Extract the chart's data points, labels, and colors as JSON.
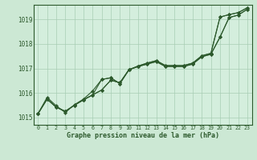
{
  "title": "Graphe pression niveau de la mer (hPa)",
  "background_color": "#cce8d4",
  "plot_bg_color": "#d4eedd",
  "grid_color": "#a8cdb4",
  "line_color": "#2d5a2d",
  "marker_color": "#2d5a2d",
  "xlim": [
    -0.5,
    23.5
  ],
  "ylim": [
    1014.7,
    1019.6
  ],
  "xticks": [
    0,
    1,
    2,
    3,
    4,
    5,
    6,
    7,
    8,
    9,
    10,
    11,
    12,
    13,
    14,
    15,
    16,
    17,
    18,
    19,
    20,
    21,
    22,
    23
  ],
  "yticks": [
    1015,
    1016,
    1017,
    1018,
    1019
  ],
  "series": [
    [
      1015.15,
      1015.75,
      1015.42,
      1015.25,
      1015.5,
      1015.72,
      1015.92,
      1016.12,
      1016.52,
      1016.42,
      1016.95,
      1017.1,
      1017.22,
      1017.32,
      1017.12,
      1017.12,
      1017.12,
      1017.22,
      1017.52,
      1017.62,
      1019.1,
      1019.2,
      1019.28,
      1019.48
    ],
    [
      1015.15,
      1015.75,
      1015.42,
      1015.25,
      1015.5,
      1015.72,
      1015.92,
      1016.55,
      1016.62,
      1016.38,
      1016.95,
      1017.08,
      1017.18,
      1017.28,
      1017.08,
      1017.08,
      1017.08,
      1017.18,
      1017.48,
      1017.58,
      1018.28,
      1019.08,
      1019.18,
      1019.42
    ],
    [
      1015.15,
      1015.75,
      1015.42,
      1015.25,
      1015.5,
      1015.72,
      1015.92,
      1016.12,
      1016.52,
      1016.42,
      1016.95,
      1017.1,
      1017.22,
      1017.32,
      1017.12,
      1017.12,
      1017.12,
      1017.22,
      1017.52,
      1017.62,
      1019.1,
      1019.2,
      1019.28,
      1019.48
    ],
    [
      1015.15,
      1015.82,
      1015.48,
      1015.2,
      1015.52,
      1015.75,
      1016.08,
      1016.55,
      1016.62,
      1016.38,
      1016.95,
      1017.08,
      1017.18,
      1017.28,
      1017.08,
      1017.08,
      1017.08,
      1017.18,
      1017.48,
      1017.58,
      1018.28,
      1019.08,
      1019.18,
      1019.42
    ]
  ]
}
